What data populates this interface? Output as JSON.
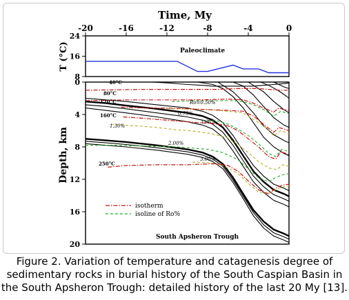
{
  "chart_data": {
    "type": "line",
    "top_panel": {
      "ylabel": "T (°C)",
      "yticks": [
        24,
        16,
        8
      ],
      "ylim": [
        8,
        24
      ],
      "annotation": "Paleoclimate",
      "series": [
        {
          "x": [
            -20,
            -11,
            -9,
            -8,
            -5.5,
            -4.5,
            -3,
            -2,
            0
          ],
          "y": [
            14,
            14,
            10,
            10,
            12.5,
            11,
            11,
            9.5,
            9.5
          ]
        }
      ]
    },
    "main_panel": {
      "title": "Time, My",
      "xticks": [
        -20,
        -16,
        -12,
        -8,
        -4,
        0
      ],
      "xlim": [
        -20,
        0
      ],
      "ylabel": "Depth, km",
      "yticks": [
        0,
        4,
        8,
        12,
        16,
        20
      ],
      "ylim": [
        0,
        20
      ],
      "annotation": "South Apsheron Trough",
      "legend": {
        "position": "bottom-left",
        "items": [
          {
            "label": "isotherm",
            "color": "#cc1111",
            "style": "dash-dot"
          },
          {
            "label": "isoline of Ro%",
            "color": "#22aa22",
            "style": "dashed"
          }
        ]
      },
      "isotherm_labels": [
        "40°C",
        "80°C",
        "120°C",
        "160°C",
        "250°C"
      ],
      "ro_labels": [
        "Ro=0.50%",
        "0.75%",
        "1.00%",
        "1.30%",
        "2.00%",
        "3.00%"
      ],
      "strata": [
        {
          "x": [
            -20,
            -18,
            -16,
            -13,
            -10,
            -8.5,
            -7.5,
            -6.5,
            -5.5,
            -4.5,
            -3.5,
            -2.5,
            -1.5,
            -0.5,
            0
          ],
          "y": [
            0,
            0,
            0,
            0,
            0,
            0,
            0,
            0,
            0,
            0,
            0,
            0,
            0,
            0,
            0
          ]
        },
        {
          "x": [
            -13.5,
            -12,
            -10,
            -8.5,
            -7.5,
            -6.5,
            -5.5,
            -4.5,
            -3.5,
            -2.5,
            -1.5,
            -0.5,
            0
          ],
          "y": [
            0,
            0.1,
            0.3,
            0.4,
            0.5,
            0.5,
            0.5,
            0.5,
            0.5,
            0.4,
            0.3,
            0.2,
            0.1
          ]
        },
        {
          "x": [
            -20,
            -18,
            -16,
            -13,
            -10,
            -8.5,
            -7.5,
            -6.5,
            -5.5,
            -4.5,
            -3.5,
            -2.5,
            -1.5,
            -0.5,
            0
          ],
          "y": [
            2.0,
            2.2,
            2.4,
            2.8,
            3.2,
            3.6,
            4.1,
            5.0,
            6.6,
            8.5,
            10.3,
            11.6,
            12.6,
            13.1,
            13.4
          ]
        },
        {
          "x": [
            -20,
            -18,
            -16,
            -13,
            -10,
            -8.5,
            -7.5,
            -6.5,
            -5.5,
            -4.5,
            -3.5,
            -2.5,
            -1.5,
            -0.5,
            0
          ],
          "y": [
            2.4,
            2.6,
            2.9,
            3.3,
            3.8,
            4.2,
            4.7,
            5.6,
            7.2,
            9.1,
            11.0,
            12.3,
            13.3,
            13.8,
            14.1
          ]
        },
        {
          "x": [
            -20,
            -18,
            -16,
            -13,
            -10,
            -8.5,
            -7.5,
            -6.5,
            -5.5,
            -4.5,
            -3.5,
            -2.5,
            -1.5,
            -0.5,
            0
          ],
          "y": [
            2.8,
            3.0,
            3.3,
            3.8,
            4.3,
            4.7,
            5.2,
            6.2,
            7.8,
            9.7,
            11.6,
            12.9,
            13.9,
            14.4,
            14.7
          ]
        },
        {
          "x": [
            -20,
            -18,
            -16,
            -13,
            -10,
            -8.5,
            -7.5,
            -6.5,
            -5.5,
            -4.5,
            -3.5,
            -2.5,
            -1.5,
            -0.5,
            0
          ],
          "y": [
            3.2,
            3.5,
            3.8,
            4.3,
            4.9,
            5.3,
            5.8,
            6.8,
            8.5,
            10.4,
            12.3,
            13.6,
            14.6,
            15.1,
            15.4
          ]
        },
        {
          "x": [
            -20,
            -18,
            -16,
            -13,
            -10,
            -8.5,
            -7.5,
            -6.5,
            -5.5,
            -4.5,
            -3.5,
            -2.5,
            -1.5,
            -0.5,
            0
          ],
          "y": [
            7.0,
            7.2,
            7.4,
            7.8,
            8.3,
            8.7,
            9.2,
            10.1,
            11.8,
            13.8,
            15.8,
            17.2,
            18.2,
            18.7,
            19.0
          ]
        },
        {
          "x": [
            -20,
            -18,
            -16,
            -13,
            -10,
            -8.5,
            -7.5,
            -6.5,
            -5.5,
            -4.5,
            -3.5,
            -2.5,
            -1.5,
            -0.5,
            0
          ],
          "y": [
            7.3,
            7.5,
            7.7,
            8.1,
            8.6,
            9.0,
            9.5,
            10.4,
            12.1,
            14.1,
            16.1,
            17.6,
            18.6,
            19.1,
            19.4
          ]
        },
        {
          "x": [
            -20,
            -18,
            -16,
            -13,
            -10,
            -8.5,
            -7.5,
            -6.5,
            -5.5,
            -4.5,
            -3.5,
            -2.5,
            -1.5,
            -0.5,
            0
          ],
          "y": [
            7.6,
            7.8,
            8.0,
            8.4,
            8.9,
            9.3,
            9.8,
            10.7,
            12.4,
            14.4,
            16.5,
            18.0,
            19.0,
            19.5,
            19.8
          ]
        },
        {
          "x": [
            -9,
            -7.5,
            -6.5,
            -5.5,
            -4.5,
            -3.5,
            -2.5,
            -1.5,
            -0.5,
            0
          ],
          "y": [
            0,
            0.3,
            0.8,
            1.8,
            3.2,
            5.0,
            6.8,
            8.0,
            8.8,
            9.1
          ]
        },
        {
          "x": [
            -7,
            -6.5,
            -5.5,
            -4.5,
            -3.5,
            -2.5,
            -1.5,
            -0.5,
            0
          ],
          "y": [
            0,
            0.4,
            1.2,
            2.4,
            3.8,
            5.4,
            6.5,
            7.2,
            7.5
          ]
        },
        {
          "x": [
            -5.5,
            -4.5,
            -3.5,
            -2.5,
            -1.5,
            -0.5,
            0
          ],
          "y": [
            0,
            0.5,
            1.6,
            3.0,
            4.4,
            5.3,
            5.6
          ]
        },
        {
          "x": [
            -4,
            -3.5,
            -2.5,
            -1.5,
            -0.5,
            0
          ],
          "y": [
            0,
            0.4,
            1.2,
            2.4,
            3.4,
            3.8
          ]
        },
        {
          "x": [
            -2.8,
            -2.0,
            -1.0,
            -0.3,
            0
          ],
          "y": [
            0,
            0.4,
            1.1,
            1.7,
            2.0
          ]
        },
        {
          "x": [
            -1.5,
            -1.0,
            -0.5,
            0
          ],
          "y": [
            0,
            0.3,
            0.6,
            0.8
          ]
        }
      ],
      "thick_strata_index": [
        3,
        6
      ],
      "isotherms": [
        {
          "x": [
            -20,
            -14,
            -10,
            -7,
            -5,
            -3,
            -2,
            -1,
            0
          ],
          "y": [
            1.0,
            0.9,
            0.9,
            0.9,
            0.8,
            0.8,
            0.9,
            1.0,
            1.0
          ]
        },
        {
          "x": [
            -20,
            -16,
            -12,
            -9,
            -6,
            -4.5,
            -3.5,
            -2.5,
            -1.5,
            -1,
            -0.5,
            0
          ],
          "y": [
            2.3,
            2.2,
            2.2,
            2.2,
            2.1,
            2.2,
            2.6,
            3.2,
            3.7,
            3.2,
            3.4,
            3.5
          ]
        },
        {
          "x": [
            -16.5,
            -14,
            -12,
            -10,
            -8,
            -6,
            -4.5,
            -3.5,
            -2.5,
            -1.5,
            -1,
            -0.5,
            0
          ],
          "y": [
            3.1,
            3.2,
            3.2,
            3.3,
            3.4,
            3.5,
            3.6,
            4.2,
            5.2,
            6.2,
            5.6,
            5.8,
            6.0
          ]
        },
        {
          "x": [
            -16.3,
            -15,
            -13,
            -11,
            -9,
            -7.5,
            -6,
            -5,
            -4,
            -3,
            -2,
            -1.3,
            -0.8,
            -0.3,
            0
          ],
          "y": [
            4.3,
            4.4,
            4.6,
            4.8,
            5.0,
            5.1,
            5.4,
            6.0,
            7.0,
            8.0,
            9.2,
            9.5,
            8.6,
            8.8,
            9.0
          ]
        },
        {
          "x": [
            -17.8,
            -16,
            -13,
            -10,
            -8,
            -7,
            -6,
            -5,
            -4,
            -3,
            -2,
            -1.2,
            -0.6,
            0
          ],
          "y": [
            10.5,
            10.3,
            10.2,
            10.2,
            10.1,
            10.1,
            10.3,
            11.0,
            12.2,
            13.3,
            13.8,
            13.0,
            12.7,
            12.6
          ]
        }
      ],
      "ro_isolines": [
        {
          "x": [
            -11.5,
            -9,
            -7,
            -5.5,
            -4.5,
            -3.5,
            -2.5,
            -1.5,
            -0.8,
            -0.3,
            0
          ],
          "y": [
            2.4,
            2.3,
            2.3,
            2.3,
            2.4,
            2.8,
            3.4,
            4.2,
            3.6,
            3.8,
            3.9
          ]
        },
        {
          "x": [
            -12,
            -10,
            -8,
            -6,
            -4.5,
            -3.5,
            -2.5,
            -1.5,
            -0.8,
            -0.3,
            0
          ],
          "y": [
            3.3,
            3.3,
            3.4,
            3.6,
            3.8,
            4.6,
            5.4,
            6.6,
            6.0,
            6.2,
            6.4
          ]
        },
        {
          "x": [
            -8.5,
            -7,
            -6,
            -5,
            -4,
            -3,
            -2,
            -1.3,
            -0.7,
            0
          ],
          "y": [
            4.7,
            4.8,
            5.2,
            5.8,
            6.6,
            7.6,
            8.8,
            9.2,
            8.3,
            8.6
          ]
        },
        {
          "x": [
            -17.5,
            -15,
            -13,
            -11,
            -9,
            -7.5,
            -6,
            -5,
            -4,
            -3,
            -2,
            -1.2,
            -0.6,
            0
          ],
          "y": [
            5.2,
            5.4,
            5.6,
            5.9,
            6.1,
            6.4,
            6.9,
            7.7,
            8.7,
            9.8,
            10.6,
            10.8,
            10.2,
            10.4
          ]
        },
        {
          "x": [
            -20,
            -17,
            -14,
            -11,
            -8,
            -6.5,
            -5,
            -4,
            -3,
            -2,
            -1.2,
            -0.5,
            0
          ],
          "y": [
            7.8,
            7.8,
            7.9,
            8.0,
            8.3,
            8.7,
            9.6,
            10.7,
            11.8,
            12.3,
            11.7,
            11.4,
            11.3
          ]
        },
        {
          "x": [
            -9.5,
            -8.5,
            -7.5,
            -6.5,
            -5,
            -4,
            -3,
            -2,
            -1.2,
            -0.5,
            0
          ],
          "y": [
            9.9,
            9.9,
            10.0,
            10.3,
            11.3,
            12.5,
            13.6,
            13.8,
            13.2,
            12.9,
            12.8
          ]
        }
      ]
    }
  },
  "caption": {
    "line1": "Figure 2. Variation of temperature and catagenesis degree of",
    "line2": "sedimentary rocks in burial history of the South Caspian Basin in",
    "line3": "the South Apsheron Trough: detailed history of the last 20 My [13]."
  }
}
